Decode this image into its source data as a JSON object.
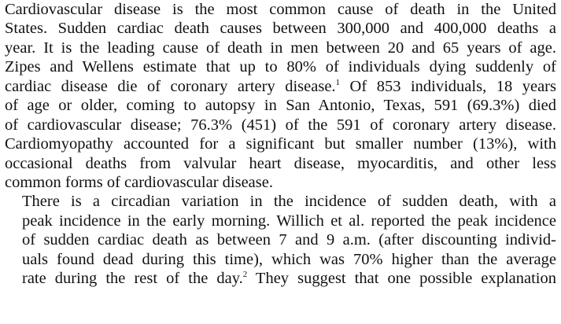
{
  "paragraphs": [
    {
      "indent": false,
      "lines": [
        {
          "segments": [
            {
              "text": "Cardiovascular disease is the most common cause of death in the United"
            }
          ]
        },
        {
          "segments": [
            {
              "text": "States. Sudden cardiac death causes between 300,000 and 400,000 deaths a"
            }
          ]
        },
        {
          "segments": [
            {
              "text": "year. It is the leading cause of death in men between 20 and 65 years of age."
            }
          ]
        },
        {
          "segments": [
            {
              "text": "Zipes and Wellens estimate that up to 80% of individuals dying suddenly of"
            }
          ]
        },
        {
          "segments": [
            {
              "text": "cardiac disease die of coronary artery disease."
            },
            {
              "sup": "1"
            },
            {
              "text": " Of 853 individuals, 18 years"
            }
          ]
        },
        {
          "segments": [
            {
              "text": "of age or older, coming to autopsy in San Antonio, Texas, 591 (69.3%) died"
            }
          ]
        },
        {
          "segments": [
            {
              "text": "of cardiovascular disease; 76.3% (451) of the 591 of coronary artery disease."
            }
          ]
        },
        {
          "segments": [
            {
              "text": "Cardiomyopathy accounted for a significant but smaller number (13%), with"
            }
          ]
        },
        {
          "segments": [
            {
              "text": "occasional deaths from valvular heart disease, myocarditis, and other less"
            }
          ]
        },
        {
          "segments": [
            {
              "text": "common forms of cardiovascular disease."
            }
          ],
          "last": true
        }
      ]
    },
    {
      "indent": true,
      "lines": [
        {
          "segments": [
            {
              "text": "There is a circadian variation in the incidence of sudden death, with a"
            }
          ]
        },
        {
          "segments": [
            {
              "text": "peak incidence in the early morning. Willich et al. reported the peak incidence"
            }
          ]
        },
        {
          "segments": [
            {
              "text": "of sudden cardiac death as between 7 and 9 a.m. (after discounting individ-"
            }
          ]
        },
        {
          "segments": [
            {
              "text": "uals found dead during this time), which was 70% higher than the average"
            }
          ]
        },
        {
          "segments": [
            {
              "text": "rate during the rest of the day."
            },
            {
              "sup": "2"
            },
            {
              "text": " They suggest that one possible explanation"
            }
          ]
        }
      ]
    }
  ]
}
